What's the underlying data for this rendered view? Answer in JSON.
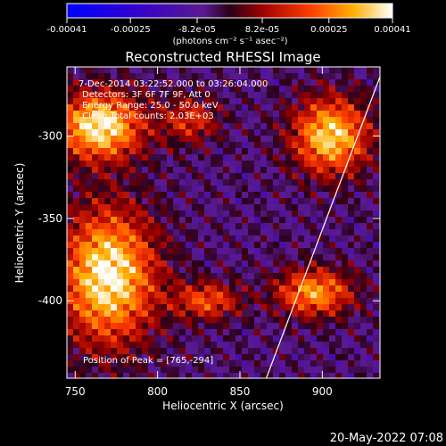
{
  "chart_data": {
    "type": "heatmap",
    "title": "Reconstructed RHESSI Image",
    "xlabel": "Heliocentric X (arcsec)",
    "ylabel": "Heliocentric Y (arcsec)",
    "xlim": [
      745,
      935
    ],
    "ylim": [
      -447,
      -258
    ],
    "x_ticks": [
      750,
      800,
      850,
      900
    ],
    "y_ticks": [
      -300,
      -350,
      -400
    ],
    "colorbar": {
      "range": [
        -0.00041,
        0.00041
      ],
      "tick_labels": [
        "-0.00041",
        "-0.00025",
        "-8.2e-05",
        "8.2e-05",
        "0.00025",
        "0.00041"
      ],
      "tick_values": [
        -0.00041,
        -0.00025,
        -8.2e-05,
        8.2e-05,
        0.00025,
        0.00041
      ],
      "units_label": "(photons cm⁻² s⁻¹ asec⁻²)"
    },
    "annotations": {
      "time_range": "7-Dec-2014 03:22:52.000 to 03:26:04.000",
      "detectors": "Detectors: 3F 6F 7F 9F, Att 0",
      "energy_range": "Energy Range: 25.0 - 50.0 keV",
      "method": "Clean   Total counts: 2.03E+03",
      "peak": "Position of Peak = [765,-294]"
    },
    "limb_line": {
      "x": [
        866,
        935
      ],
      "y": [
        -447,
        -264
      ]
    },
    "sources": [
      {
        "x": 770,
        "y": -385,
        "intensity": 1.0,
        "sigma_x": 20,
        "sigma_y": 28
      },
      {
        "x": 765,
        "y": -294,
        "intensity": 1.0,
        "sigma_x": 18,
        "sigma_y": 14
      },
      {
        "x": 905,
        "y": -300,
        "intensity": 0.9,
        "sigma_x": 16,
        "sigma_y": 16
      },
      {
        "x": 895,
        "y": -395,
        "intensity": 0.75,
        "sigma_x": 16,
        "sigma_y": 10
      },
      {
        "x": 830,
        "y": -400,
        "intensity": 0.55,
        "sigma_x": 14,
        "sigma_y": 8
      },
      {
        "x": 820,
        "y": -290,
        "intensity": 0.45,
        "sigma_x": 12,
        "sigma_y": 10
      }
    ]
  },
  "footer": {
    "date_stamp": "20-May-2022 07:08"
  }
}
